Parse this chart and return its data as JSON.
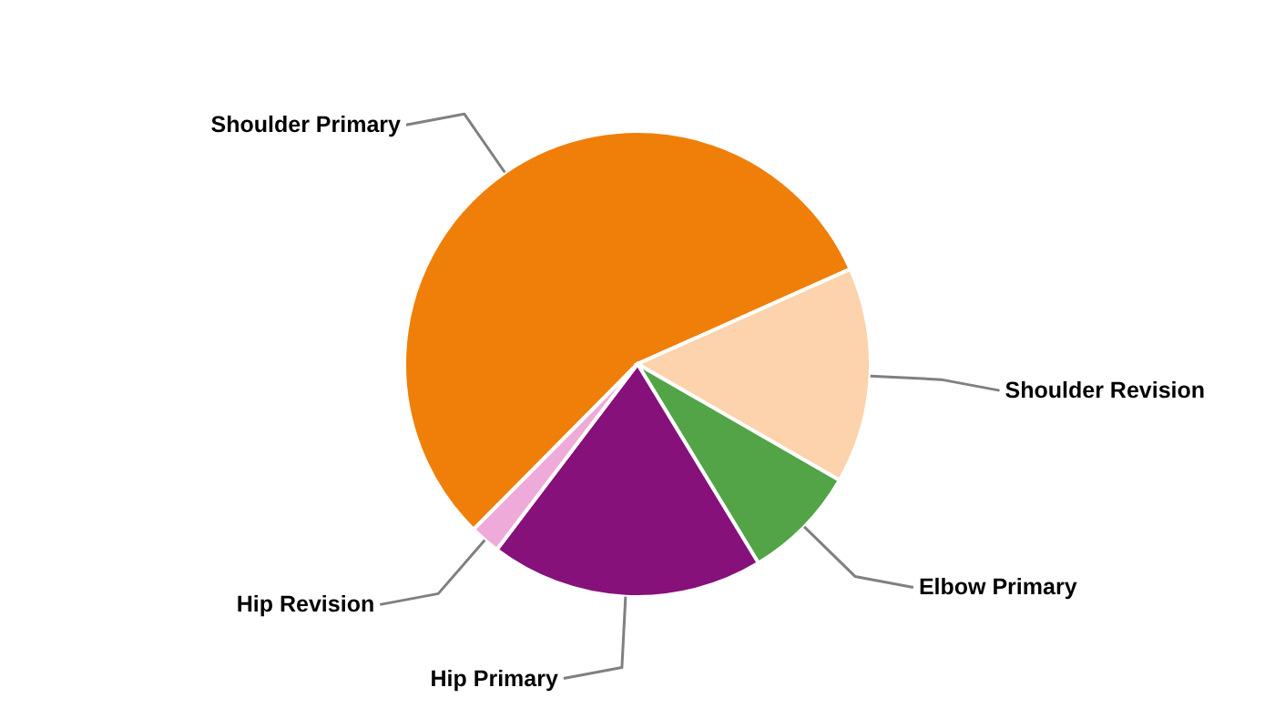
{
  "chart_data": {
    "type": "pie",
    "categories": [
      "Shoulder Primary",
      "Shoulder Revision",
      "Elbow Primary",
      "Hip Primary",
      "Hip Revision"
    ],
    "values": [
      55.9,
      15.0,
      8.0,
      19.0,
      2.1
    ],
    "colors": [
      "#f07f09",
      "#fcd3ac",
      "#52a447",
      "#86117a",
      "#eeaad9"
    ]
  }
}
